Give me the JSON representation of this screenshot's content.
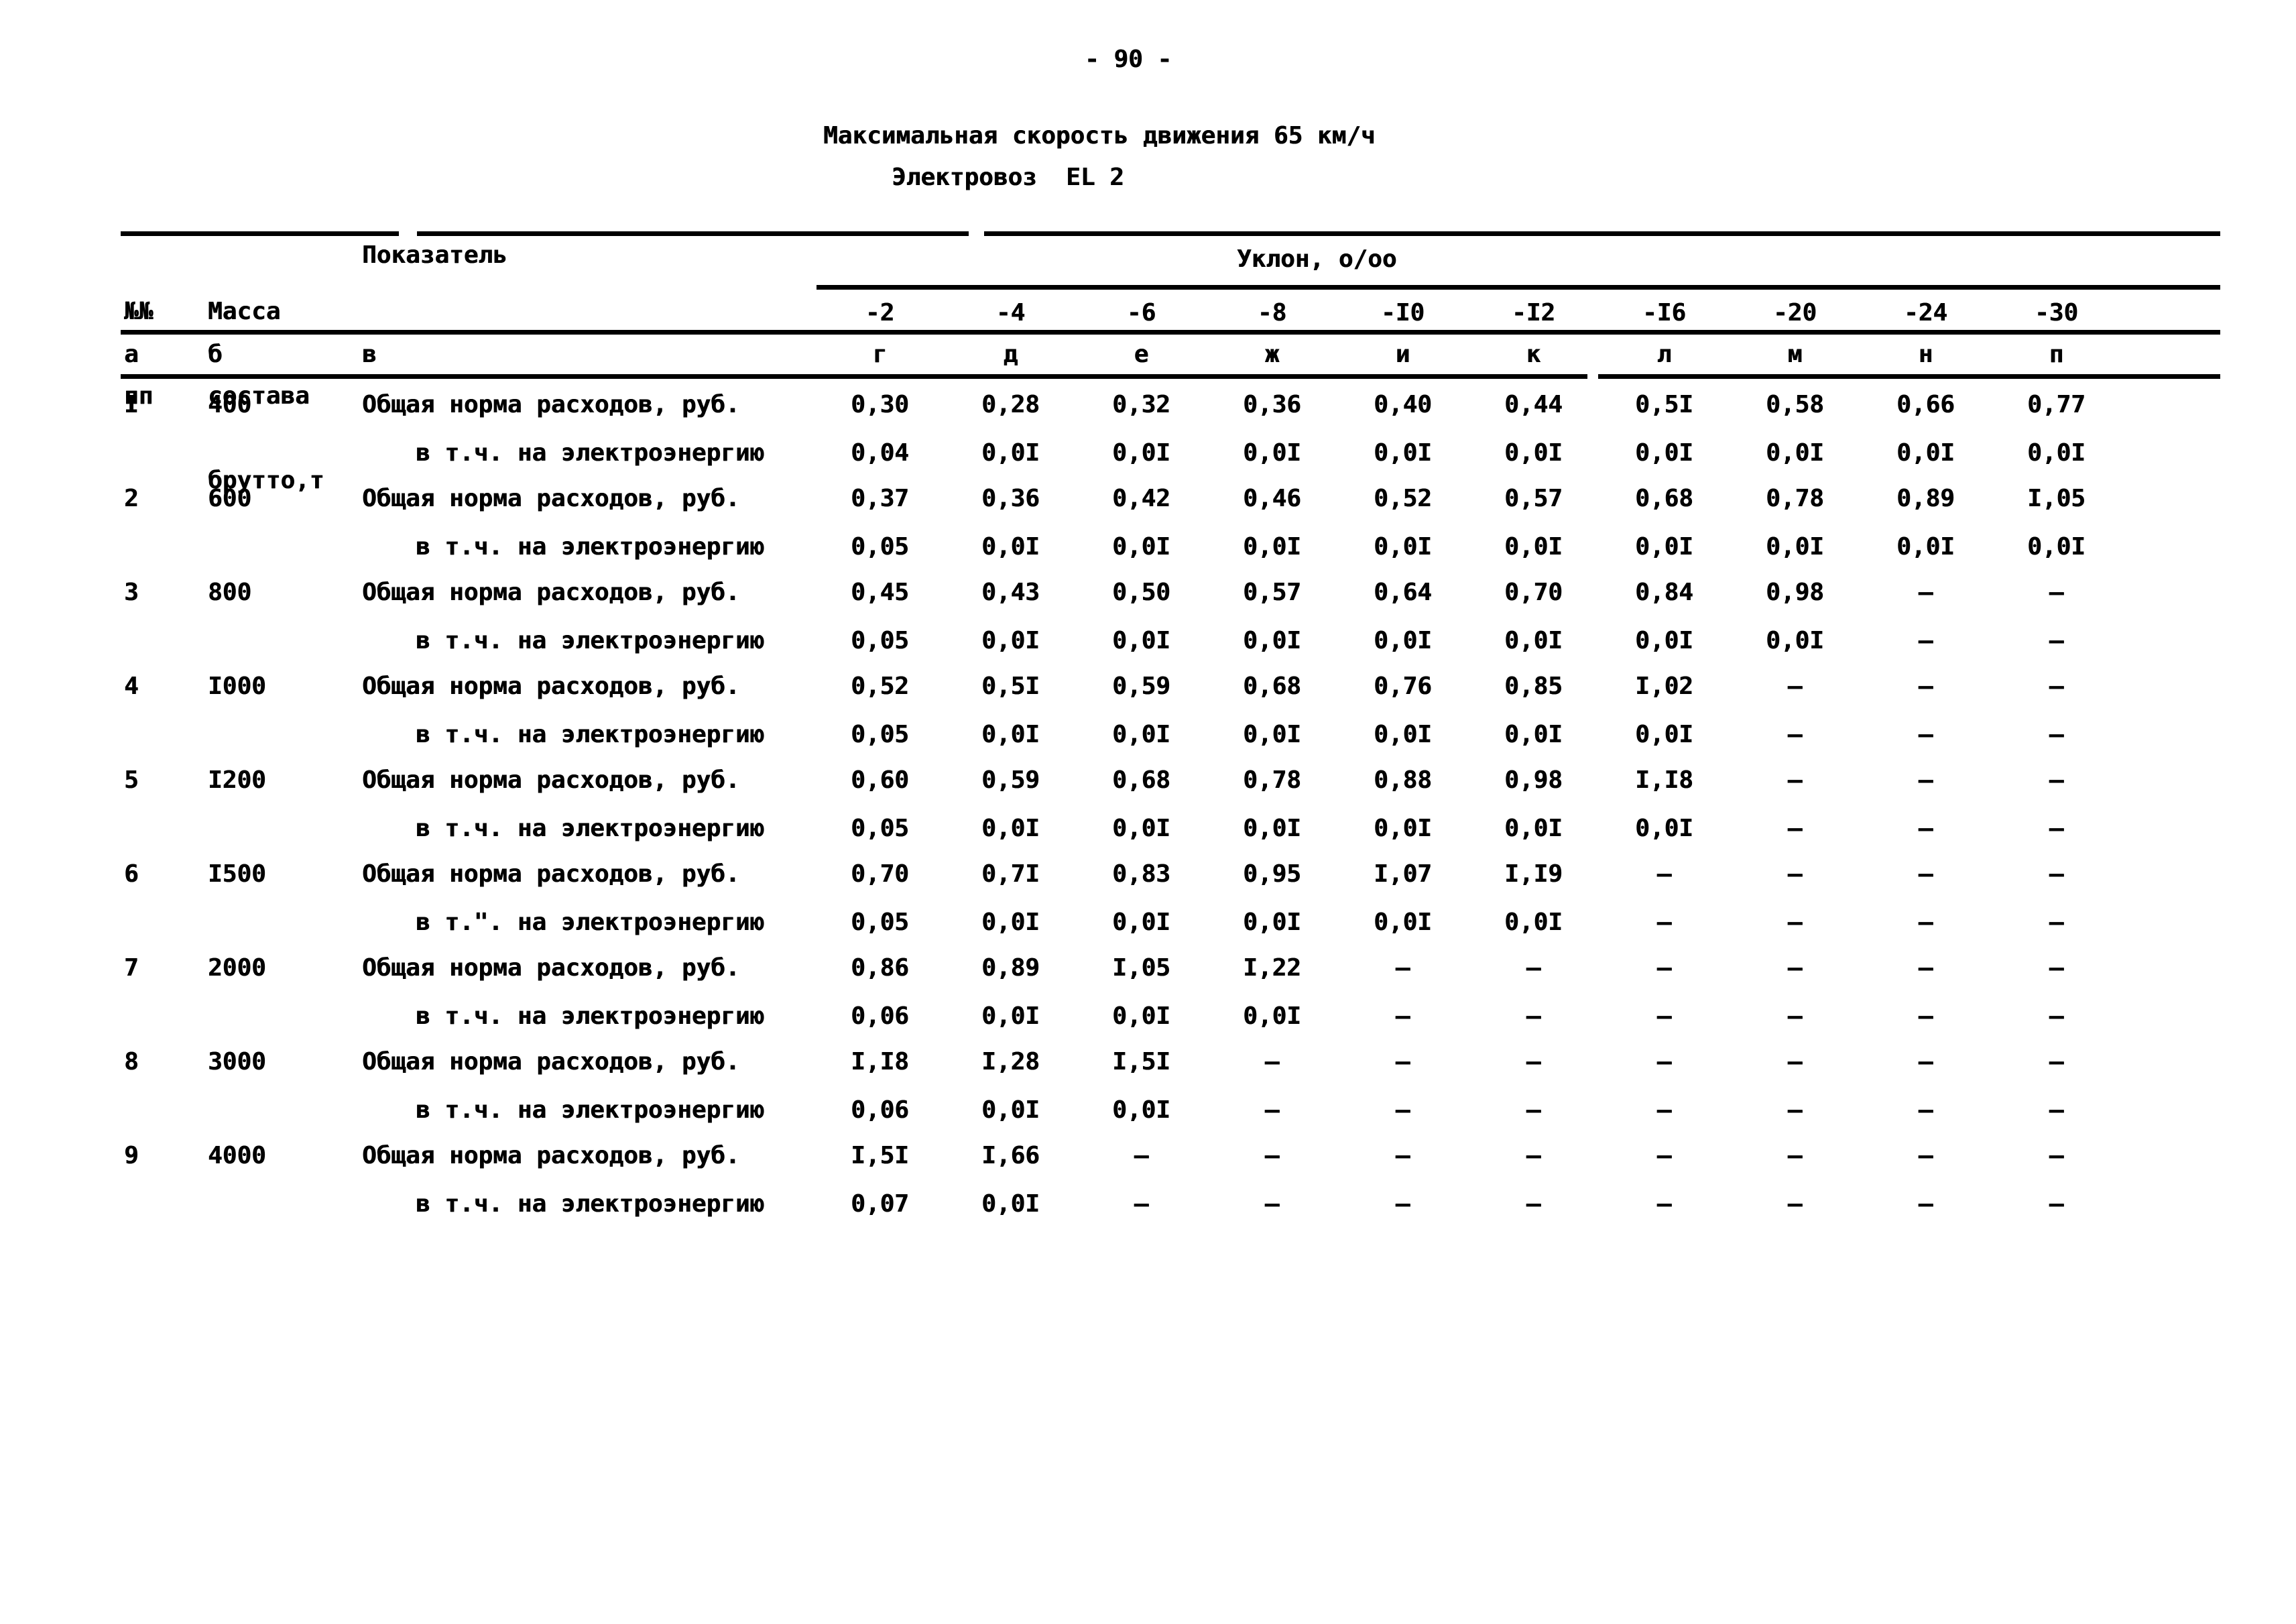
{
  "page_number": "- 90 -",
  "title": "Максимальная скорость движения 65 км/ч",
  "subtitle": "Электровоз  EL 2",
  "table": {
    "header": {
      "col_num": [
        "№№",
        "пп"
      ],
      "col_mass": [
        "Масса",
        "состава",
        "брутто,т"
      ],
      "col_indicator": "Показатель",
      "group": "Уклон, о/оо",
      "slopes": [
        "-2",
        "-4",
        "-6",
        "-8",
        "-I0",
        "-I2",
        "-I6",
        "-20",
        "-24",
        "-30"
      ],
      "letters": [
        "а",
        "б",
        "в",
        "г",
        "д",
        "е",
        "ж",
        "и",
        "к",
        "л",
        "м",
        "н",
        "п"
      ]
    },
    "rows": [
      {
        "num": "I",
        "mass": "400",
        "lines": [
          {
            "label": "Общая норма расходов, руб.",
            "values": [
              "0,30",
              "0,28",
              "0,32",
              "0,36",
              "0,40",
              "0,44",
              "0,5I",
              "0,58",
              "0,66",
              "0,77"
            ]
          },
          {
            "label": "в т.ч. на электроэнергию",
            "values": [
              "0,04",
              "0,0I",
              "0,0I",
              "0,0I",
              "0,0I",
              "0,0I",
              "0,0I",
              "0,0I",
              "0,0I",
              "0,0I"
            ]
          }
        ]
      },
      {
        "num": "2",
        "mass": "600",
        "lines": [
          {
            "label": "Общая норма расходов, руб.",
            "values": [
              "0,37",
              "0,36",
              "0,42",
              "0,46",
              "0,52",
              "0,57",
              "0,68",
              "0,78",
              "0,89",
              "I,05"
            ]
          },
          {
            "label": "в т.ч. на электроэнергию",
            "values": [
              "0,05",
              "0,0I",
              "0,0I",
              "0,0I",
              "0,0I",
              "0,0I",
              "0,0I",
              "0,0I",
              "0,0I",
              "0,0I"
            ]
          }
        ]
      },
      {
        "num": "3",
        "mass": "800",
        "lines": [
          {
            "label": "Общая норма расходов, руб.",
            "values": [
              "0,45",
              "0,43",
              "0,50",
              "0,57",
              "0,64",
              "0,70",
              "0,84",
              "0,98",
              "–",
              "–"
            ]
          },
          {
            "label": "в т.ч. на электроэнергию",
            "values": [
              "0,05",
              "0,0I",
              "0,0I",
              "0,0I",
              "0,0I",
              "0,0I",
              "0,0I",
              "0,0I",
              "–",
              "–"
            ]
          }
        ]
      },
      {
        "num": "4",
        "mass": "I000",
        "lines": [
          {
            "label": "Общая норма расходов, руб.",
            "values": [
              "0,52",
              "0,5I",
              "0,59",
              "0,68",
              "0,76",
              "0,85",
              "I,02",
              "–",
              "–",
              "–"
            ]
          },
          {
            "label": "в т.ч. на электроэнергию",
            "values": [
              "0,05",
              "0,0I",
              "0,0I",
              "0,0I",
              "0,0I",
              "0,0I",
              "0,0I",
              "–",
              "–",
              "–"
            ]
          }
        ]
      },
      {
        "num": "5",
        "mass": "I200",
        "lines": [
          {
            "label": "Общая норма расходов, руб.",
            "values": [
              "0,60",
              "0,59",
              "0,68",
              "0,78",
              "0,88",
              "0,98",
              "I,I8",
              "–",
              "–",
              "–"
            ]
          },
          {
            "label": "в т.ч. на электроэнергию",
            "values": [
              "0,05",
              "0,0I",
              "0,0I",
              "0,0I",
              "0,0I",
              "0,0I",
              "0,0I",
              "–",
              "–",
              "–"
            ]
          }
        ]
      },
      {
        "num": "6",
        "mass": "I500",
        "lines": [
          {
            "label": "Общая норма расходов, руб.",
            "values": [
              "0,70",
              "0,7I",
              "0,83",
              "0,95",
              "I,07",
              "I,I9",
              "–",
              "–",
              "–",
              "–"
            ]
          },
          {
            "label": "в т.\". на электроэнергию",
            "values": [
              "0,05",
              "0,0I",
              "0,0I",
              "0,0I",
              "0,0I",
              "0,0I",
              "–",
              "–",
              "–",
              "–"
            ]
          }
        ]
      },
      {
        "num": "7",
        "mass": "2000",
        "lines": [
          {
            "label": "Общая норма расходов, руб.",
            "values": [
              "0,86",
              "0,89",
              "I,05",
              "I,22",
              "–",
              "–",
              "–",
              "–",
              "–",
              "–"
            ]
          },
          {
            "label": "в т.ч. на электроэнергию",
            "values": [
              "0,06",
              "0,0I",
              "0,0I",
              "0,0I",
              "–",
              "–",
              "–",
              "–",
              "–",
              "–"
            ]
          }
        ]
      },
      {
        "num": "8",
        "mass": "3000",
        "lines": [
          {
            "label": "Общая норма расходов, руб.",
            "values": [
              "I,I8",
              "I,28",
              "I,5I",
              "–",
              "–",
              "–",
              "–",
              "–",
              "–",
              "–"
            ]
          },
          {
            "label": "в т.ч. на электроэнергию",
            "values": [
              "0,06",
              "0,0I",
              "0,0I",
              "–",
              "–",
              "–",
              "–",
              "–",
              "–",
              "–"
            ]
          }
        ]
      },
      {
        "num": "9",
        "mass": "4000",
        "lines": [
          {
            "label": "Общая норма расходов, руб.",
            "values": [
              "I,5I",
              "I,66",
              "–",
              "–",
              "–",
              "–",
              "–",
              "–",
              "–",
              "–"
            ]
          },
          {
            "label": "в т.ч. на электроэнергию",
            "values": [
              "0,07",
              "0,0I",
              "–",
              "–",
              "–",
              "–",
              "–",
              "–",
              "–",
              "–"
            ]
          }
        ]
      }
    ]
  }
}
